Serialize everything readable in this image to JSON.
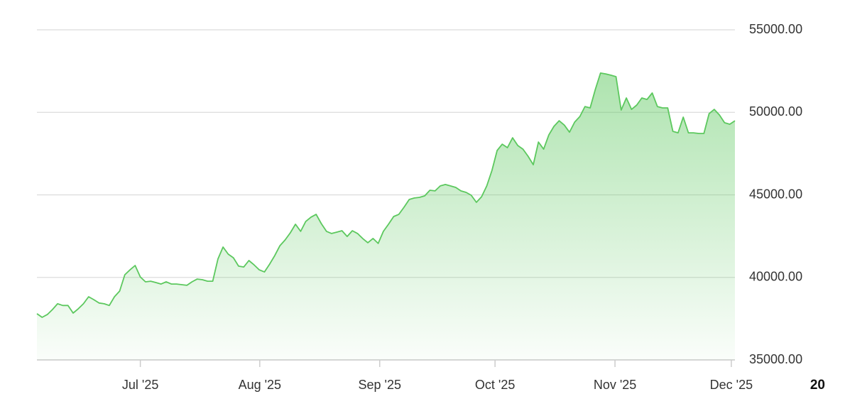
{
  "chart_data": {
    "type": "area",
    "values": [
      37800,
      37580,
      37750,
      38050,
      38400,
      38300,
      38300,
      37840,
      38100,
      38400,
      38830,
      38650,
      38450,
      38400,
      38300,
      38830,
      39170,
      40160,
      40460,
      40720,
      40030,
      39730,
      39770,
      39690,
      39600,
      39730,
      39600,
      39600,
      39560,
      39520,
      39730,
      39900,
      39860,
      39770,
      39770,
      41110,
      41840,
      41410,
      41190,
      40680,
      40630,
      41020,
      40760,
      40460,
      40330,
      40800,
      41320,
      41920,
      42270,
      42700,
      43220,
      42790,
      43390,
      43650,
      43820,
      43260,
      42790,
      42660,
      42740,
      42830,
      42480,
      42830,
      42660,
      42360,
      42100,
      42360,
      42060,
      42790,
      43220,
      43690,
      43820,
      44250,
      44720,
      44810,
      44850,
      44940,
      45280,
      45240,
      45540,
      45630,
      45540,
      45450,
      45240,
      45150,
      44980,
      44550,
      44890,
      45540,
      46480,
      47690,
      48070,
      47860,
      48460,
      47990,
      47770,
      47340,
      46830,
      48200,
      47770,
      48630,
      49150,
      49490,
      49230,
      48800,
      49410,
      49750,
      50350,
      50270,
      51390,
      52380,
      52330,
      52250,
      52160,
      50140,
      50870,
      50180,
      50440,
      50870,
      50780,
      51170,
      50350,
      50270,
      50270,
      48850,
      48760,
      49710,
      48760,
      48760,
      48720,
      48720,
      49920,
      50180,
      49840,
      49370,
      49280,
      49490
    ],
    "color": "#5cc85e",
    "xlim": [
      0,
      135
    ],
    "xticks": [
      {
        "value": 20,
        "label": "Jul '25"
      },
      {
        "value": 43.1,
        "label": "Aug '25"
      },
      {
        "value": 66.3,
        "label": "Sep '25"
      },
      {
        "value": 88.6,
        "label": "Oct '25"
      },
      {
        "value": 111.8,
        "label": "Nov '25"
      },
      {
        "value": 134.3,
        "label": "Dec '25"
      }
    ],
    "ylim": [
      35000,
      55000
    ],
    "yticks": [
      {
        "value": 35000,
        "label": "35000.00"
      },
      {
        "value": 40000,
        "label": "40000.00"
      },
      {
        "value": 45000,
        "label": "45000.00"
      },
      {
        "value": 50000,
        "label": "50000.00"
      },
      {
        "value": 55000,
        "label": "55000.00"
      }
    ],
    "grid": true,
    "year_label": "20"
  }
}
